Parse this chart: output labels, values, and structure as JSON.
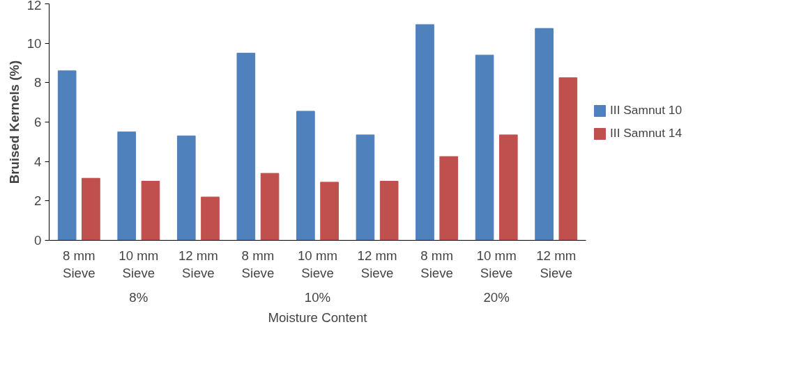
{
  "chart_data": {
    "type": "bar",
    "ylabel": "Bruised Kernels (%)",
    "xlabel": "Moisture Content",
    "categories": [
      "8 mm Sieve",
      "10 mm Sieve",
      "12 mm Sieve",
      "8 mm Sieve",
      "10 mm Sieve",
      "12 mm Sieve",
      "8 mm Sieve",
      "10 mm Sieve",
      "12 mm Sieve"
    ],
    "annotations": [
      "8%",
      "10%",
      "20%"
    ],
    "series": [
      {
        "name": "III Samnut 10",
        "color": "#4f81bd",
        "values": [
          8.6,
          5.5,
          5.3,
          9.5,
          6.55,
          5.35,
          10.95,
          9.4,
          10.75
        ]
      },
      {
        "name": "III Samnut 14",
        "color": "#c0504d",
        "values": [
          3.15,
          3.0,
          2.2,
          3.4,
          2.95,
          3.0,
          4.25,
          5.35,
          8.25
        ]
      }
    ],
    "ylim": [
      0,
      12
    ],
    "yticks": [
      0,
      2,
      4,
      6,
      8,
      10,
      12
    ],
    "grid": false,
    "legend": "right"
  }
}
